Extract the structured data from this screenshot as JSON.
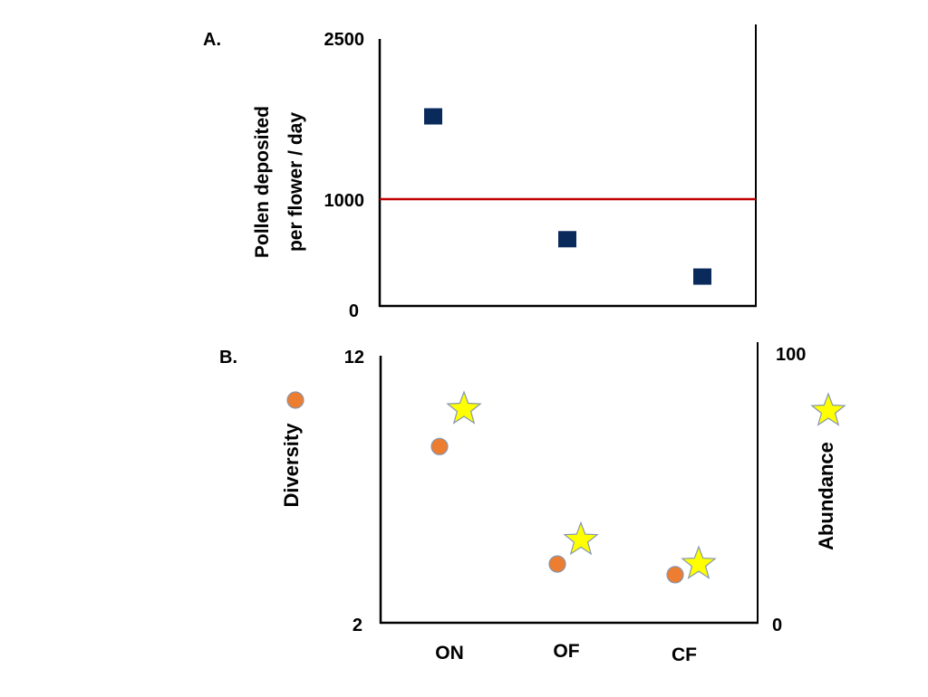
{
  "chart_data": [
    {
      "type": "scatter",
      "panel_label": "A.",
      "ylabel_line1": "Pollen deposited",
      "ylabel_line2": "per flower / day",
      "yticks": [
        "2500",
        "1000",
        "0"
      ],
      "ylim": [
        0,
        2500
      ],
      "categories": [
        "ON",
        "OF",
        "CF"
      ],
      "series": [
        {
          "marker": "square",
          "color": "#0b2a5c",
          "values": [
            1775,
            625,
            275
          ]
        }
      ],
      "reference_line": {
        "value": 1000,
        "color": "#c00000"
      }
    },
    {
      "type": "scatter",
      "panel_label": "B.",
      "ylabel_left": "Diversity",
      "ylabel_right": "Abundance",
      "yticks_left": [
        "12",
        "2"
      ],
      "yticks_right": [
        "100",
        "0"
      ],
      "ylim_left": [
        2,
        12
      ],
      "ylim_right": [
        0,
        100
      ],
      "categories": [
        "ON",
        "OF",
        "CF"
      ],
      "series": [
        {
          "axis": "left",
          "marker": "circle",
          "color": "#ed7d31",
          "values": [
            8.6,
            4.2,
            3.8
          ]
        },
        {
          "axis": "right",
          "marker": "star",
          "color": "#ffff00",
          "values": [
            80,
            31,
            22
          ]
        }
      ]
    }
  ]
}
